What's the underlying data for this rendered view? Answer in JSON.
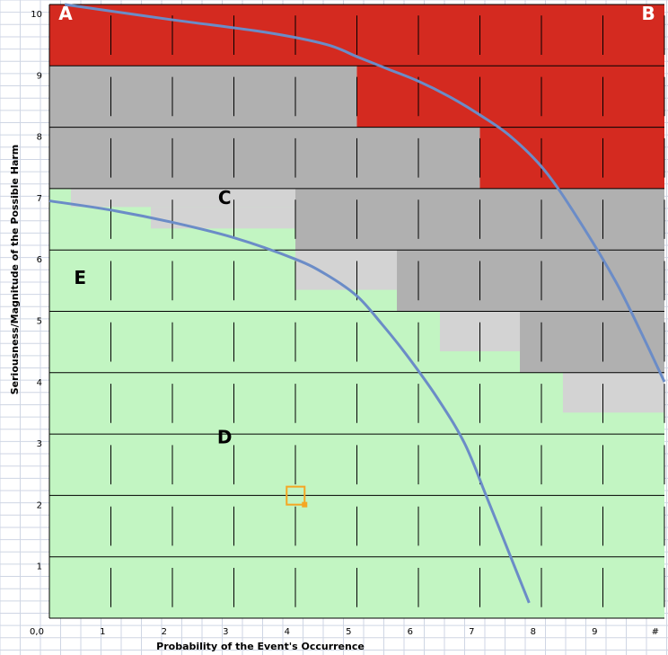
{
  "chart_data": {
    "type": "area",
    "title": "",
    "xlabel": "Probability  of the Event's Occurrence",
    "ylabel": "Seriousness/Magnitude of the Possible Harm",
    "xlim": [
      0,
      10
    ],
    "ylim": [
      0,
      10
    ],
    "x_tick_labels": [
      "0,0",
      "1",
      "2",
      "3",
      "4",
      "5",
      "6",
      "7",
      "8",
      "9",
      "#"
    ],
    "y_tick_labels": [
      "1",
      "2",
      "3",
      "4",
      "5",
      "6",
      "7",
      "8",
      "9",
      "10"
    ],
    "grid": true,
    "colors": {
      "red": "#d42a20",
      "dark_gray": "#b0b0b0",
      "light_gray": "#d3d3d3",
      "green": "#c2f5c2",
      "curve": "#6b8cc7",
      "marker": "#f5a623"
    },
    "regions": [
      {
        "color": "red",
        "x0": 0,
        "x1": 10,
        "y0": 9.0,
        "y1": 10.0
      },
      {
        "color": "red",
        "x0": 5.0,
        "x1": 10,
        "y0": 8.0,
        "y1": 9.0
      },
      {
        "color": "red",
        "x0": 7.0,
        "x1": 10,
        "y0": 7.0,
        "y1": 8.0
      },
      {
        "color": "dark_gray",
        "x0": 0,
        "x1": 5.0,
        "y0": 8.0,
        "y1": 9.0
      },
      {
        "color": "dark_gray",
        "x0": 0,
        "x1": 7.0,
        "y0": 7.0,
        "y1": 8.0
      },
      {
        "color": "dark_gray",
        "x0": 4.0,
        "x1": 10,
        "y0": 6.0,
        "y1": 7.0
      },
      {
        "color": "dark_gray",
        "x0": 5.65,
        "x1": 10,
        "y0": 5.0,
        "y1": 6.0
      },
      {
        "color": "dark_gray",
        "x0": 7.65,
        "x1": 10,
        "y0": 4.0,
        "y1": 5.0
      },
      {
        "color": "light_gray",
        "x0": 0.35,
        "x1": 4.0,
        "y0": 6.7,
        "y1": 7.0
      },
      {
        "color": "light_gray",
        "x0": 1.65,
        "x1": 4.0,
        "y0": 6.35,
        "y1": 6.7
      },
      {
        "color": "light_gray",
        "x0": 4.0,
        "x1": 5.65,
        "y0": 5.35,
        "y1": 6.0
      },
      {
        "color": "light_gray",
        "x0": 6.35,
        "x1": 7.65,
        "y0": 4.35,
        "y1": 5.0
      },
      {
        "color": "light_gray",
        "x0": 8.35,
        "x1": 10,
        "y0": 3.35,
        "y1": 4.0
      }
    ],
    "series": [
      {
        "x": [
          0.25,
          2.0,
          3.5,
          4.5,
          5.0,
          5.5,
          6.0,
          6.5,
          7.0,
          7.5,
          8.05,
          8.6,
          9.2,
          9.6,
          10.0
        ],
        "y": [
          10.0,
          9.75,
          9.55,
          9.35,
          9.15,
          8.95,
          8.75,
          8.5,
          8.2,
          7.85,
          7.3,
          6.5,
          5.5,
          4.7,
          3.85
        ]
      },
      {
        "x": [
          0.0,
          1.0,
          2.0,
          3.0,
          4.0,
          4.5,
          5.0,
          5.4,
          5.8,
          6.3,
          6.75,
          7.1,
          7.5,
          7.8
        ],
        "y": [
          6.8,
          6.65,
          6.45,
          6.2,
          5.85,
          5.6,
          5.25,
          4.8,
          4.3,
          3.6,
          2.85,
          2.0,
          1.0,
          0.25
        ]
      }
    ],
    "annotations": [
      {
        "text": "A",
        "style": "corner",
        "x": 0.15,
        "y": 9.75
      },
      {
        "text": "B",
        "style": "corner",
        "x": 9.85,
        "y": 9.75
      },
      {
        "text": "C",
        "style": "region",
        "x": 2.85,
        "y": 6.75
      },
      {
        "text": "E",
        "style": "region",
        "x": 0.5,
        "y": 5.45
      },
      {
        "text": "D",
        "style": "region",
        "x": 2.85,
        "y": 2.85
      }
    ],
    "marker": {
      "x": 4.15,
      "y": 1.85
    }
  }
}
